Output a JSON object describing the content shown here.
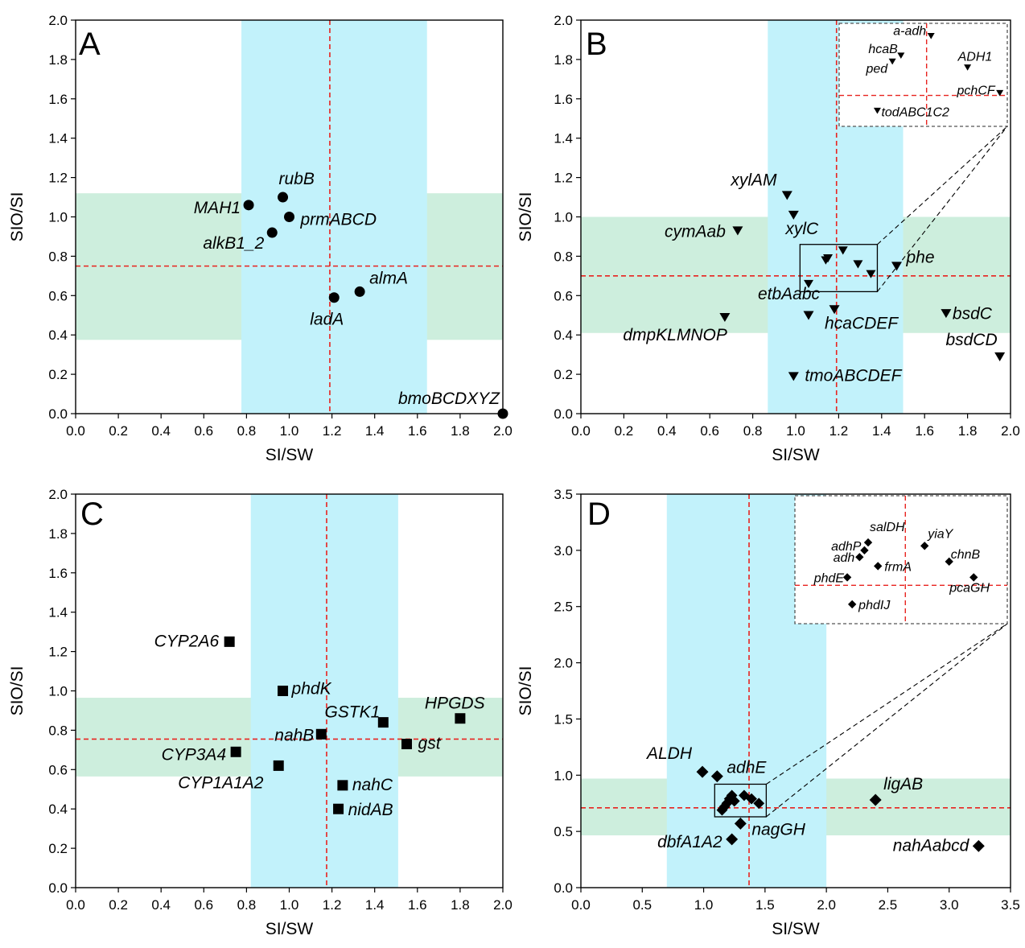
{
  "colors": {
    "si_band": "#c2f2fb",
    "sio_band": "#cdeedd",
    "median_line": "#e8231f",
    "marker": "#000000",
    "inset_border": "#555555"
  },
  "chart_data": [
    {
      "type": "scatter",
      "panel": "A",
      "xlabel": "SI/SW",
      "ylabel": "SIO/SI",
      "xlim": [
        0,
        2.0
      ],
      "ylim": [
        0,
        2.0
      ],
      "xticks": [
        "0.0",
        "0.2",
        "0.4",
        "0.6",
        "0.8",
        "1.0",
        "1.2",
        "1.4",
        "1.6",
        "1.8",
        "2.0"
      ],
      "yticks": [
        "0.0",
        "0.2",
        "0.4",
        "0.6",
        "0.8",
        "1.0",
        "1.2",
        "1.4",
        "1.6",
        "1.8",
        "2.0"
      ],
      "marker": "circle",
      "x_band": [
        0.776,
        1.645
      ],
      "y_band": [
        0.375,
        1.12
      ],
      "x_median": 1.19,
      "y_median": 0.75,
      "points": [
        {
          "label": "MAH1",
          "x": 0.81,
          "y": 1.06
        },
        {
          "label": "rubB",
          "x": 0.97,
          "y": 1.1
        },
        {
          "label": "prmABCD",
          "x": 1.0,
          "y": 1.0
        },
        {
          "label": "alkB1_2",
          "x": 0.92,
          "y": 0.92
        },
        {
          "label": "almA",
          "x": 1.33,
          "y": 0.62
        },
        {
          "label": "ladA",
          "x": 1.21,
          "y": 0.59
        },
        {
          "label": "bmoBCDXYZ",
          "x": 2.0,
          "y": 0.0
        }
      ]
    },
    {
      "type": "scatter",
      "panel": "B",
      "xlabel": "SI/SW",
      "ylabel": "SIO/SI",
      "xlim": [
        0,
        2.0
      ],
      "ylim": [
        0,
        2.0
      ],
      "xticks": [
        "0.0",
        "0.2",
        "0.4",
        "0.6",
        "0.8",
        "1.0",
        "1.2",
        "1.4",
        "1.6",
        "1.8",
        "2.0"
      ],
      "yticks": [
        "0.0",
        "0.2",
        "0.4",
        "0.6",
        "0.8",
        "1.0",
        "1.2",
        "1.4",
        "1.6",
        "1.8",
        "2.0"
      ],
      "marker": "triangle-down",
      "x_band": [
        0.87,
        1.5
      ],
      "y_band": [
        0.41,
        1.0
      ],
      "x_median": 1.19,
      "y_median": 0.7,
      "points": [
        {
          "label": "xylAM",
          "x": 0.96,
          "y": 1.11
        },
        {
          "label": "xylC",
          "x": 0.99,
          "y": 1.01
        },
        {
          "label": "cymAab",
          "x": 0.73,
          "y": 0.93
        },
        {
          "label": "phe",
          "x": 1.47,
          "y": 0.75
        },
        {
          "label": "etbAabc",
          "x": 1.06,
          "y": 0.5
        },
        {
          "label": "hcaCDEF",
          "x": 1.18,
          "y": 0.53
        },
        {
          "label": "dmpKLMNOP",
          "x": 0.67,
          "y": 0.49
        },
        {
          "label": "bsdC",
          "x": 1.7,
          "y": 0.51
        },
        {
          "label": "bsdCD",
          "x": 1.95,
          "y": 0.29
        },
        {
          "label": "tmoABCDEF",
          "x": 0.99,
          "y": 0.19
        }
      ],
      "cluster_points": [
        {
          "x": 1.15,
          "y": 0.79
        },
        {
          "x": 1.14,
          "y": 0.78
        },
        {
          "x": 1.22,
          "y": 0.83
        },
        {
          "x": 1.29,
          "y": 0.76
        },
        {
          "x": 1.35,
          "y": 0.71
        },
        {
          "x": 1.06,
          "y": 0.66
        }
      ],
      "zoom_box": {
        "x": [
          1.02,
          1.38
        ],
        "y": [
          0.62,
          0.86
        ]
      },
      "inset": {
        "points": [
          {
            "label": "a-adh",
            "x": 1.63,
            "y": 1.92
          },
          {
            "label": "hcaB",
            "x": 1.49,
            "y": 1.82
          },
          {
            "label": "ped",
            "x": 1.45,
            "y": 1.79
          },
          {
            "label": "ADH1",
            "x": 1.8,
            "y": 1.76
          },
          {
            "label": "pchCF",
            "x": 1.95,
            "y": 1.63
          },
          {
            "label": "todABC1C2",
            "x": 1.38,
            "y": 1.54
          }
        ]
      }
    },
    {
      "type": "scatter",
      "panel": "C",
      "xlabel": "SI/SW",
      "ylabel": "SIO/SI",
      "xlim": [
        0,
        2.0
      ],
      "ylim": [
        0,
        2.0
      ],
      "xticks": [
        "0.0",
        "0.2",
        "0.4",
        "0.6",
        "0.8",
        "1.0",
        "1.2",
        "1.4",
        "1.6",
        "1.8",
        "2.0"
      ],
      "yticks": [
        "0.0",
        "0.2",
        "0.4",
        "0.6",
        "0.8",
        "1.0",
        "1.2",
        "1.4",
        "1.6",
        "1.8",
        "2.0"
      ],
      "marker": "square",
      "x_band": [
        0.82,
        1.51
      ],
      "y_band": [
        0.565,
        0.965
      ],
      "x_median": 1.175,
      "y_median": 0.755,
      "points": [
        {
          "label": "CYP2A6",
          "x": 0.72,
          "y": 1.25
        },
        {
          "label": "phdK",
          "x": 0.97,
          "y": 1.0
        },
        {
          "label": "GSTK1",
          "x": 1.44,
          "y": 0.84
        },
        {
          "label": "HPGDS",
          "x": 1.8,
          "y": 0.86
        },
        {
          "label": "nahB",
          "x": 1.15,
          "y": 0.78
        },
        {
          "label": "gst",
          "x": 1.55,
          "y": 0.73
        },
        {
          "label": "CYP3A4",
          "x": 0.75,
          "y": 0.69
        },
        {
          "label": "CYP1A1A2",
          "x": 0.95,
          "y": 0.62
        },
        {
          "label": "nahC",
          "x": 1.25,
          "y": 0.52
        },
        {
          "label": "nidAB",
          "x": 1.23,
          "y": 0.4
        }
      ]
    },
    {
      "type": "scatter",
      "panel": "D",
      "xlabel": "SI/SW",
      "ylabel": "SIO/SI",
      "xlim": [
        0,
        3.5
      ],
      "ylim": [
        0,
        3.5
      ],
      "xticks": [
        "0.0",
        "0.5",
        "1.0",
        "1.5",
        "2.0",
        "2.5",
        "3.0",
        "3.5"
      ],
      "yticks": [
        "0.0",
        "0.5",
        "1.0",
        "1.5",
        "2.0",
        "2.5",
        "3.0",
        "3.5"
      ],
      "marker": "diamond",
      "x_band": [
        0.7,
        2.0
      ],
      "y_band": [
        0.465,
        0.97
      ],
      "x_median": 1.37,
      "y_median": 0.71,
      "points": [
        {
          "label": "ALDH",
          "x": 0.99,
          "y": 1.03
        },
        {
          "label": "adhE",
          "x": 1.11,
          "y": 0.99
        },
        {
          "label": "ligAB",
          "x": 2.4,
          "y": 0.78
        },
        {
          "label": "nagGH",
          "x": 1.3,
          "y": 0.57
        },
        {
          "label": "dbfA1A2",
          "x": 1.23,
          "y": 0.43
        },
        {
          "label": "nahAabcd",
          "x": 3.24,
          "y": 0.37
        }
      ],
      "cluster_points": [
        {
          "x": 1.23,
          "y": 0.82
        },
        {
          "x": 1.21,
          "y": 0.79
        },
        {
          "x": 1.19,
          "y": 0.75
        },
        {
          "x": 1.17,
          "y": 0.72
        },
        {
          "x": 1.15,
          "y": 0.69
        },
        {
          "x": 1.33,
          "y": 0.82
        },
        {
          "x": 1.39,
          "y": 0.79
        },
        {
          "x": 1.45,
          "y": 0.75
        },
        {
          "x": 1.25,
          "y": 0.77
        }
      ],
      "zoom_box": {
        "x": [
          1.09,
          1.51
        ],
        "y": [
          0.63,
          0.92
        ]
      },
      "inset": {
        "points": [
          {
            "label": "salDH",
            "x": 2.34,
            "y": 3.07
          },
          {
            "label": "adhP",
            "x": 2.31,
            "y": 3.0
          },
          {
            "label": "adh",
            "x": 2.27,
            "y": 2.94
          },
          {
            "label": "yiaY",
            "x": 2.8,
            "y": 3.04
          },
          {
            "label": "chnB",
            "x": 3.0,
            "y": 2.9
          },
          {
            "label": "frmA",
            "x": 2.42,
            "y": 2.86
          },
          {
            "label": "phdE",
            "x": 2.17,
            "y": 2.76
          },
          {
            "label": "pcaGH",
            "x": 3.2,
            "y": 2.76
          },
          {
            "label": "phdIJ",
            "x": 2.21,
            "y": 2.52
          }
        ]
      }
    }
  ],
  "panels": [
    "A",
    "B",
    "C",
    "D"
  ]
}
